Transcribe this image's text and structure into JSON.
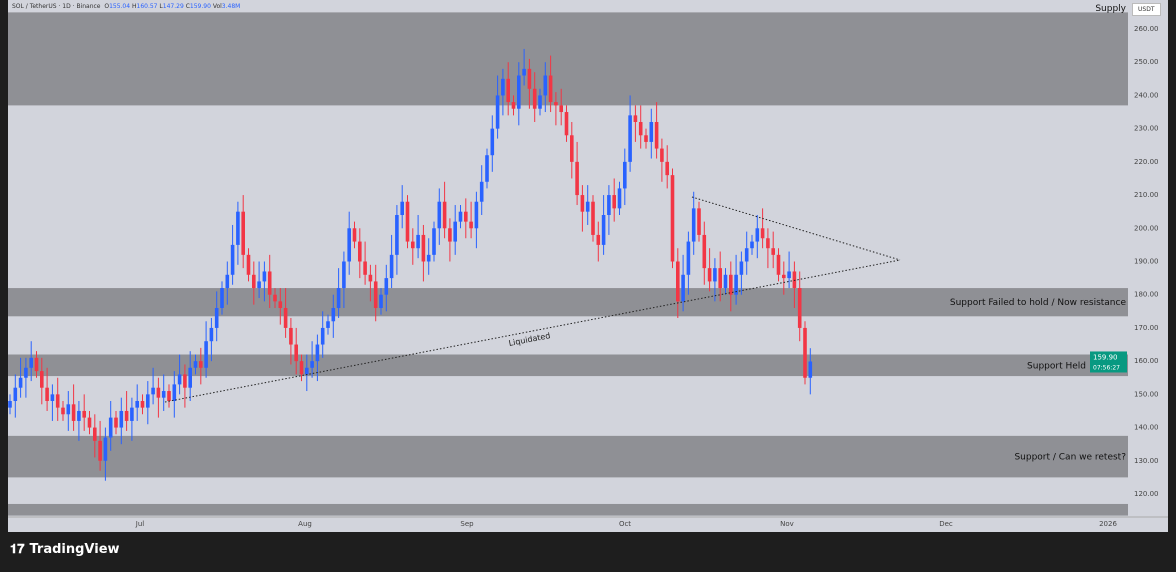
{
  "header": {
    "symbol": "SOL / TetherUS · 1D · Binance",
    "o_label": "O",
    "o": "155.04",
    "h_label": "H",
    "h": "160.57",
    "l_label": "L",
    "l": "147.29",
    "c_label": "C",
    "c": "159.90",
    "vol_label": "Vol",
    "vol": "3.48M"
  },
  "currency": "USDT",
  "brand": "TradingView",
  "colors": {
    "up": "#2962ff",
    "down": "#f23645",
    "zone": "#8f9095",
    "background": "#d2d4dc",
    "price_tag": "#089981"
  },
  "chart_data": {
    "type": "candlestick",
    "ylim": [
      113,
      265
    ],
    "y_ticks": [
      "260.00",
      "250.00",
      "240.00",
      "230.00",
      "220.00",
      "210.00",
      "200.00",
      "190.00",
      "180.00",
      "170.00",
      "160.00",
      "150.00",
      "140.00",
      "130.00",
      "120.00"
    ],
    "x_ticks": [
      "Jul",
      "Aug",
      "Sep",
      "Oct",
      "Nov",
      "Dec",
      "2026"
    ],
    "closes": [
      148,
      152,
      155,
      158,
      161,
      157,
      152,
      148,
      150,
      146,
      144,
      147,
      142,
      145,
      143,
      140,
      136,
      130,
      137,
      143,
      140,
      145,
      142,
      146,
      148,
      146,
      150,
      152,
      149,
      151,
      148,
      153,
      156,
      152,
      158,
      160,
      158,
      166,
      170,
      176,
      182,
      186,
      195,
      205,
      192,
      186,
      182,
      184,
      187,
      180,
      178,
      176,
      170,
      165,
      160,
      156,
      158,
      160,
      165,
      170,
      172,
      176,
      182,
      190,
      200,
      196,
      190,
      186,
      184,
      176,
      180,
      185,
      192,
      204,
      208,
      196,
      194,
      198,
      190,
      192,
      200,
      208,
      200,
      196,
      202,
      205,
      202,
      200,
      208,
      214,
      222,
      230,
      240,
      245,
      238,
      236,
      246,
      248,
      242,
      236,
      240,
      246,
      238,
      237,
      235,
      228,
      220,
      210,
      205,
      208,
      198,
      195,
      204,
      210,
      206,
      212,
      220,
      234,
      232,
      228,
      226,
      232,
      224,
      220,
      216,
      190,
      178,
      186,
      196,
      206,
      198,
      188,
      184,
      188,
      182,
      186,
      180,
      186,
      190,
      194,
      196,
      200,
      197,
      194,
      192,
      186,
      185,
      187,
      182,
      170,
      155,
      159.9
    ],
    "zones": [
      {
        "label": "Supply",
        "top": 265,
        "bottom": 237
      },
      {
        "label": "Support Failed to hold / Now resistance",
        "top": 182,
        "bottom": 173.5
      },
      {
        "label": "Support Held",
        "top": 162,
        "bottom": 155.5
      },
      {
        "label": "Support / Can we retest?",
        "top": 137.5,
        "bottom": 125
      },
      {
        "label": "",
        "top": 117,
        "bottom": 113.5
      }
    ],
    "annotations": [
      {
        "text": "Liquidated"
      }
    ],
    "last_price": "159.90",
    "countdown": "07:56:27"
  }
}
